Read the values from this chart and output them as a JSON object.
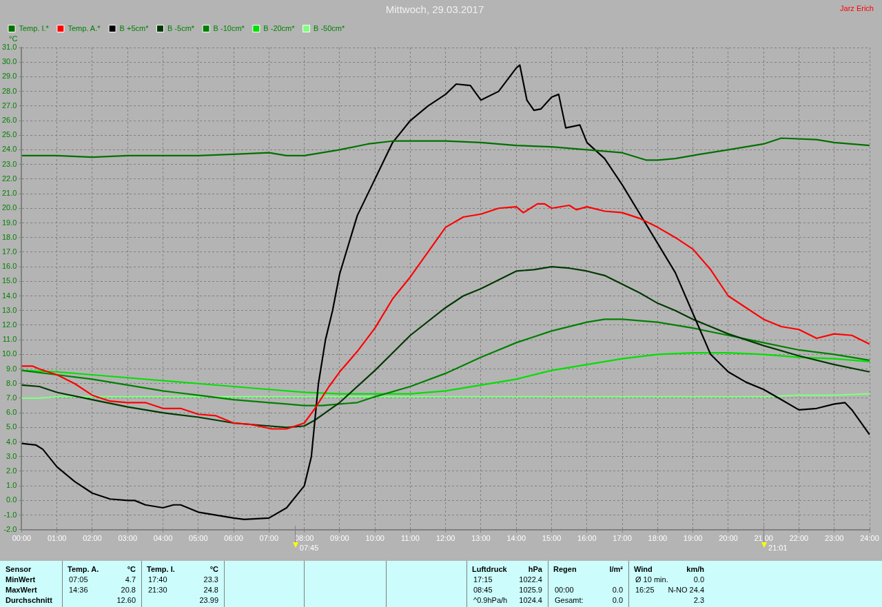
{
  "chart_data": {
    "type": "line",
    "title": "Mittwoch, 29.03.2017",
    "ylabel": "°C",
    "xlim": [
      0,
      24
    ],
    "xticks": [
      {
        "value": 0,
        "label": "00:00"
      },
      {
        "value": 1,
        "label": "01:00"
      },
      {
        "value": 2,
        "label": "02:00"
      },
      {
        "value": 3,
        "label": "03:00"
      },
      {
        "value": 4,
        "label": "04:00"
      },
      {
        "value": 5,
        "label": "05:00"
      },
      {
        "value": 6,
        "label": "06:00"
      },
      {
        "value": 7,
        "label": "07:00"
      },
      {
        "value": 8,
        "label": "08:00"
      },
      {
        "value": 9,
        "label": "09:00"
      },
      {
        "value": 10,
        "label": "10:00"
      },
      {
        "value": 11,
        "label": "11:00"
      },
      {
        "value": 12,
        "label": "12:00"
      },
      {
        "value": 13,
        "label": "13:00"
      },
      {
        "value": 14,
        "label": "14:00"
      },
      {
        "value": 15,
        "label": "15:00"
      },
      {
        "value": 16,
        "label": "16:00"
      },
      {
        "value": 17,
        "label": "17:00"
      },
      {
        "value": 18,
        "label": "18:00"
      },
      {
        "value": 19,
        "label": "19:00"
      },
      {
        "value": 20,
        "label": "20:00"
      },
      {
        "value": 21,
        "label": "21:00"
      },
      {
        "value": 22,
        "label": "22:00"
      },
      {
        "value": 23,
        "label": "23:00"
      },
      {
        "value": 24,
        "label": "24:00"
      }
    ],
    "ylim": [
      -2,
      31
    ],
    "yticks": [
      {
        "value": -2,
        "label": "-2.0"
      },
      {
        "value": -1,
        "label": "-1.0"
      },
      {
        "value": 0,
        "label": "0.0"
      },
      {
        "value": 1,
        "label": "1.0"
      },
      {
        "value": 2,
        "label": "2.0"
      },
      {
        "value": 3,
        "label": "3.0"
      },
      {
        "value": 4,
        "label": "4.0"
      },
      {
        "value": 5,
        "label": "5.0"
      },
      {
        "value": 6,
        "label": "6.0"
      },
      {
        "value": 7,
        "label": "7.0"
      },
      {
        "value": 8,
        "label": "8.0"
      },
      {
        "value": 9,
        "label": "9.0"
      },
      {
        "value": 10,
        "label": "10.0"
      },
      {
        "value": 11,
        "label": "11.0"
      },
      {
        "value": 12,
        "label": "12.0"
      },
      {
        "value": 13,
        "label": "13.0"
      },
      {
        "value": 14,
        "label": "14.0"
      },
      {
        "value": 15,
        "label": "15.0"
      },
      {
        "value": 16,
        "label": "16.0"
      },
      {
        "value": 17,
        "label": "17.0"
      },
      {
        "value": 18,
        "label": "18.0"
      },
      {
        "value": 19,
        "label": "19.0"
      },
      {
        "value": 20,
        "label": "20.0"
      },
      {
        "value": 21,
        "label": "21.0"
      },
      {
        "value": 22,
        "label": "22.0"
      },
      {
        "value": 23,
        "label": "23.0"
      },
      {
        "value": 24,
        "label": "24.0"
      },
      {
        "value": 25,
        "label": "25.0"
      },
      {
        "value": 26,
        "label": "26.0"
      },
      {
        "value": 27,
        "label": "27.0"
      },
      {
        "value": 28,
        "label": "28.0"
      },
      {
        "value": 29,
        "label": "29.0"
      },
      {
        "value": 30,
        "label": "30.0"
      },
      {
        "value": 31,
        "label": "31.0"
      }
    ],
    "grid": true,
    "legend": "top left",
    "marker": "none",
    "line_style": "solid",
    "series": [
      {
        "name": "Temp. I.*",
        "color": "#007000",
        "x": [
          0,
          1,
          2,
          3,
          4,
          5,
          6,
          7,
          7.5,
          8,
          9,
          9.8,
          10.5,
          12,
          13,
          14,
          15,
          16,
          17,
          17.67,
          18,
          18.5,
          19.2,
          20,
          21,
          21.5,
          22.5,
          23,
          24
        ],
        "values": [
          23.6,
          23.6,
          23.5,
          23.6,
          23.6,
          23.6,
          23.7,
          23.8,
          23.6,
          23.6,
          24,
          24.4,
          24.6,
          24.6,
          24.5,
          24.3,
          24.2,
          24,
          23.8,
          23.3,
          23.3,
          23.4,
          23.7,
          24,
          24.4,
          24.8,
          24.7,
          24.5,
          24.3
        ]
      },
      {
        "name": "Temp. A.*",
        "color": "#ff0000",
        "x": [
          0,
          0.3,
          0.5,
          1,
          1.5,
          2,
          2.5,
          3,
          3.5,
          4,
          4.5,
          5,
          5.5,
          6,
          6.5,
          7.08,
          7.5,
          8,
          8.3,
          8.7,
          9,
          9.5,
          10,
          10.5,
          11,
          11.5,
          12,
          12.5,
          13,
          13.5,
          14,
          14.2,
          14.6,
          14.8,
          15,
          15.5,
          15.7,
          16,
          16.5,
          17,
          17.5,
          18,
          18.5,
          19,
          19.5,
          20,
          20.5,
          21,
          21.5,
          22,
          22.5,
          23,
          23.5,
          24
        ],
        "values": [
          9.2,
          9.2,
          9,
          8.6,
          8,
          7.2,
          6.8,
          6.7,
          6.7,
          6.3,
          6.3,
          5.9,
          5.8,
          5.3,
          5.2,
          4.9,
          4.9,
          5.3,
          6.3,
          7.8,
          8.8,
          10.2,
          11.8,
          13.8,
          15.3,
          17,
          18.7,
          19.4,
          19.6,
          20,
          20.1,
          19.7,
          20.3,
          20.3,
          20,
          20.2,
          19.9,
          20.1,
          19.8,
          19.7,
          19.3,
          18.7,
          18,
          17.2,
          15.8,
          14,
          13.2,
          12.4,
          11.9,
          11.7,
          11.1,
          11.4,
          11.3,
          10.7
        ]
      },
      {
        "name": "B +5cm*",
        "color": "#000000",
        "x": [
          0,
          0.4,
          0.6,
          1,
          1.5,
          2,
          2.5,
          3,
          3.2,
          3.5,
          4,
          4.3,
          4.5,
          5,
          5.5,
          6,
          6.3,
          7,
          7.5,
          8,
          8.2,
          8.4,
          8.6,
          8.8,
          9,
          9.5,
          10,
          10.5,
          11,
          11.5,
          12,
          12.3,
          12.7,
          13,
          13.5,
          14,
          14.1,
          14.3,
          14.5,
          14.7,
          15,
          15.2,
          15.4,
          15.8,
          16,
          16.5,
          17,
          17.5,
          18,
          18.5,
          19,
          19.5,
          20,
          20.5,
          21,
          21.5,
          22,
          22.5,
          23,
          23.3,
          23.5,
          24
        ],
        "values": [
          3.9,
          3.8,
          3.5,
          2.3,
          1.3,
          0.5,
          0.1,
          0,
          0,
          -0.3,
          -0.5,
          -0.3,
          -0.3,
          -0.8,
          -1,
          -1.2,
          -1.3,
          -1.2,
          -0.5,
          1,
          3,
          8,
          11,
          13,
          15.5,
          19.5,
          22,
          24.5,
          26,
          27,
          27.8,
          28.5,
          28.4,
          27.4,
          28,
          29.6,
          29.8,
          27.4,
          26.7,
          26.8,
          27.6,
          27.8,
          25.5,
          25.7,
          24.5,
          23.4,
          21.6,
          19.6,
          17.6,
          15.6,
          12.8,
          10,
          8.8,
          8.1,
          7.6,
          6.9,
          6.2,
          6.3,
          6.6,
          6.7,
          6.2,
          4.5
        ]
      },
      {
        "name": "B -5cm*",
        "color": "#003800",
        "x": [
          0,
          0.5,
          1,
          2,
          3,
          4,
          5,
          6,
          7,
          7.5,
          8,
          8.3,
          9,
          10,
          11,
          12,
          12.5,
          13,
          13.5,
          14,
          14.5,
          15,
          15.5,
          16,
          16.5,
          17,
          17.5,
          18,
          18.5,
          19,
          19.5,
          20,
          21,
          22,
          23,
          24
        ],
        "values": [
          7.9,
          7.8,
          7.4,
          6.9,
          6.4,
          6,
          5.7,
          5.3,
          5.1,
          5,
          5.1,
          5.5,
          6.7,
          8.9,
          11.3,
          13.2,
          14,
          14.5,
          15.1,
          15.7,
          15.8,
          16,
          15.9,
          15.7,
          15.4,
          14.8,
          14.2,
          13.5,
          13,
          12.4,
          11.9,
          11.4,
          10.6,
          9.9,
          9.3,
          8.8
        ]
      },
      {
        "name": "B -10cm*",
        "color": "#008000",
        "x": [
          0,
          1,
          2,
          3,
          4,
          5,
          6,
          7,
          7.5,
          8,
          8.5,
          9,
          9.5,
          10,
          11,
          12,
          13,
          14,
          15,
          16,
          16.5,
          17,
          18,
          19,
          20,
          21,
          22,
          23,
          24
        ],
        "values": [
          8.9,
          8.6,
          8.3,
          7.9,
          7.5,
          7.2,
          6.9,
          6.7,
          6.6,
          6.5,
          6.5,
          6.6,
          6.7,
          7.1,
          7.8,
          8.7,
          9.8,
          10.8,
          11.6,
          12.2,
          12.4,
          12.4,
          12.2,
          11.8,
          11.3,
          10.8,
          10.3,
          10,
          9.6
        ]
      },
      {
        "name": "B -20cm*",
        "color": "#00e000",
        "x": [
          0,
          1,
          2,
          3,
          4,
          5,
          6,
          7,
          8,
          9,
          10,
          11,
          12,
          13,
          14,
          15,
          16,
          17,
          18,
          19,
          20,
          21,
          22,
          23,
          24
        ],
        "values": [
          8.9,
          8.8,
          8.6,
          8.4,
          8.2,
          8,
          7.8,
          7.6,
          7.4,
          7.3,
          7.3,
          7.3,
          7.5,
          7.9,
          8.3,
          8.9,
          9.3,
          9.7,
          10,
          10.1,
          10.1,
          10,
          9.8,
          9.7,
          9.5
        ]
      },
      {
        "name": "B -50cm*",
        "color": "#80ff80",
        "x": [
          0,
          0.5,
          1,
          21,
          22,
          23,
          24
        ],
        "values": [
          7,
          7,
          7.1,
          7.1,
          7.2,
          7.2,
          7.3
        ]
      }
    ],
    "annotations": [
      "Jarz Erich",
      "Sensor",
      "MinWert",
      "MaxWert",
      "Durchschnitt",
      "Temp. A.",
      "°C",
      "07:05",
      "4.7",
      "14:36",
      "20.8",
      "12.60",
      "Temp. I.",
      "°C",
      "17:40",
      "23.3",
      "21:30",
      "24.8",
      "23.99",
      "Luftdruck",
      "hPa",
      "17:15",
      "1022.4",
      "08:45",
      "1025.9",
      "^0.9hPa/h",
      "1024.4",
      "Regen",
      "l/m²",
      "00:00",
      "0.0",
      "Gesamt:",
      "0.0",
      "Wind",
      "km/h",
      "Ø 10 min.",
      "0.0",
      "16:25",
      "N-NO 24.4",
      "2.3",
      "07:45",
      "21:01"
    ]
  }
}
